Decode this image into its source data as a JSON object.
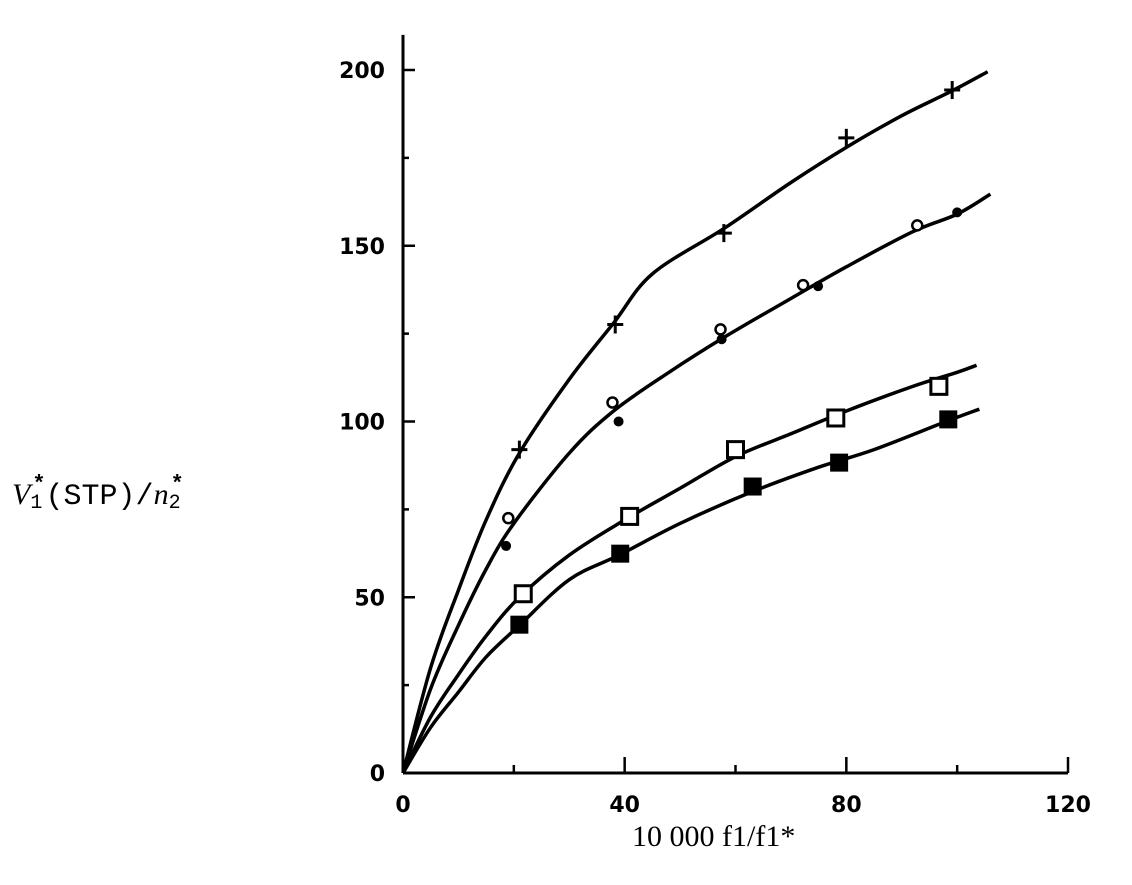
{
  "chart_data": {
    "type": "line",
    "title": "",
    "xlabel": "10 000 f1/f1*",
    "ylabel": "V1*(STP)/n2*",
    "xlim": [
      0,
      120
    ],
    "ylim": [
      0,
      210
    ],
    "x_ticks": [
      0,
      40,
      80,
      120
    ],
    "y_ticks": [
      0,
      50,
      100,
      150,
      200
    ],
    "grid": false,
    "legend": "none",
    "series": [
      {
        "name": "plus",
        "marker": "+",
        "points": [
          [
            21,
            92
          ],
          [
            38.3,
            127.6
          ],
          [
            57.9,
            153.6
          ],
          [
            80,
            180.7
          ],
          [
            99.1,
            194.3
          ]
        ],
        "curve": [
          [
            0,
            0
          ],
          [
            5,
            30
          ],
          [
            10,
            52
          ],
          [
            15,
            72
          ],
          [
            21,
            91
          ],
          [
            30,
            112
          ],
          [
            38,
            128
          ],
          [
            45,
            142
          ],
          [
            58,
            155
          ],
          [
            70,
            168
          ],
          [
            80,
            178
          ],
          [
            90,
            187
          ],
          [
            99,
            194
          ],
          [
            105.5,
            199.5
          ]
        ]
      },
      {
        "name": "open-circle",
        "marker": "o",
        "points": [
          [
            19,
            72.5
          ],
          [
            37.8,
            105.4
          ],
          [
            57.3,
            126.2
          ],
          [
            72.2,
            138.8
          ],
          [
            92.8,
            155.8
          ]
        ],
        "curve": [
          [
            0,
            0
          ],
          [
            5,
            24
          ],
          [
            10,
            42
          ],
          [
            15,
            58
          ],
          [
            20,
            71
          ],
          [
            30,
            91
          ],
          [
            38,
            103
          ],
          [
            48,
            114
          ],
          [
            58,
            124
          ],
          [
            70,
            135
          ],
          [
            80,
            144
          ],
          [
            92,
            154
          ],
          [
            100,
            159
          ],
          [
            106,
            164.7
          ]
        ]
      },
      {
        "name": "filled-circle",
        "marker": "filled-o",
        "points": [
          [
            18.6,
            64.6
          ],
          [
            38.9,
            100
          ],
          [
            57.5,
            123.4
          ],
          [
            74.9,
            138.5
          ],
          [
            100,
            159.5
          ]
        ],
        "curve_shared_with": "open-circle"
      },
      {
        "name": "open-square",
        "marker": "square",
        "points": [
          [
            21.7,
            51
          ],
          [
            40.9,
            73
          ],
          [
            60,
            92
          ],
          [
            78.1,
            101
          ],
          [
            96.7,
            110
          ]
        ],
        "curve": [
          [
            0,
            0
          ],
          [
            5,
            16
          ],
          [
            10,
            28
          ],
          [
            15,
            39
          ],
          [
            21,
            50
          ],
          [
            30,
            62
          ],
          [
            40,
            72
          ],
          [
            50,
            81
          ],
          [
            60,
            90
          ],
          [
            70,
            96.5
          ],
          [
            80,
            103
          ],
          [
            92,
            110
          ],
          [
            100,
            114
          ],
          [
            103.5,
            116
          ]
        ]
      },
      {
        "name": "filled-square",
        "marker": "filled-square",
        "points": [
          [
            21,
            42.2
          ],
          [
            39.2,
            62.4
          ],
          [
            63.1,
            81.5
          ],
          [
            78.7,
            88.3
          ],
          [
            98.4,
            100.6
          ]
        ],
        "curve": [
          [
            0,
            0
          ],
          [
            5,
            13
          ],
          [
            10,
            23
          ],
          [
            15,
            33
          ],
          [
            21,
            42
          ],
          [
            30,
            55
          ],
          [
            39,
            62
          ],
          [
            50,
            71
          ],
          [
            63,
            80
          ],
          [
            75,
            87
          ],
          [
            85,
            92
          ],
          [
            98,
            100
          ],
          [
            104,
            103.5
          ]
        ]
      }
    ]
  },
  "axes": {
    "x_tick_labels": [
      "0",
      "40",
      "80",
      "120"
    ],
    "y_tick_labels": [
      "0",
      "50",
      "100",
      "150",
      "200"
    ],
    "ylabel_parts": {
      "var": "V",
      "sub1": "1",
      "sup1": "*",
      "mid": "(STP)/",
      "var2": "n",
      "sub2": "2",
      "sup2": "*"
    },
    "xlabel": "10 000 f1/f1*"
  }
}
